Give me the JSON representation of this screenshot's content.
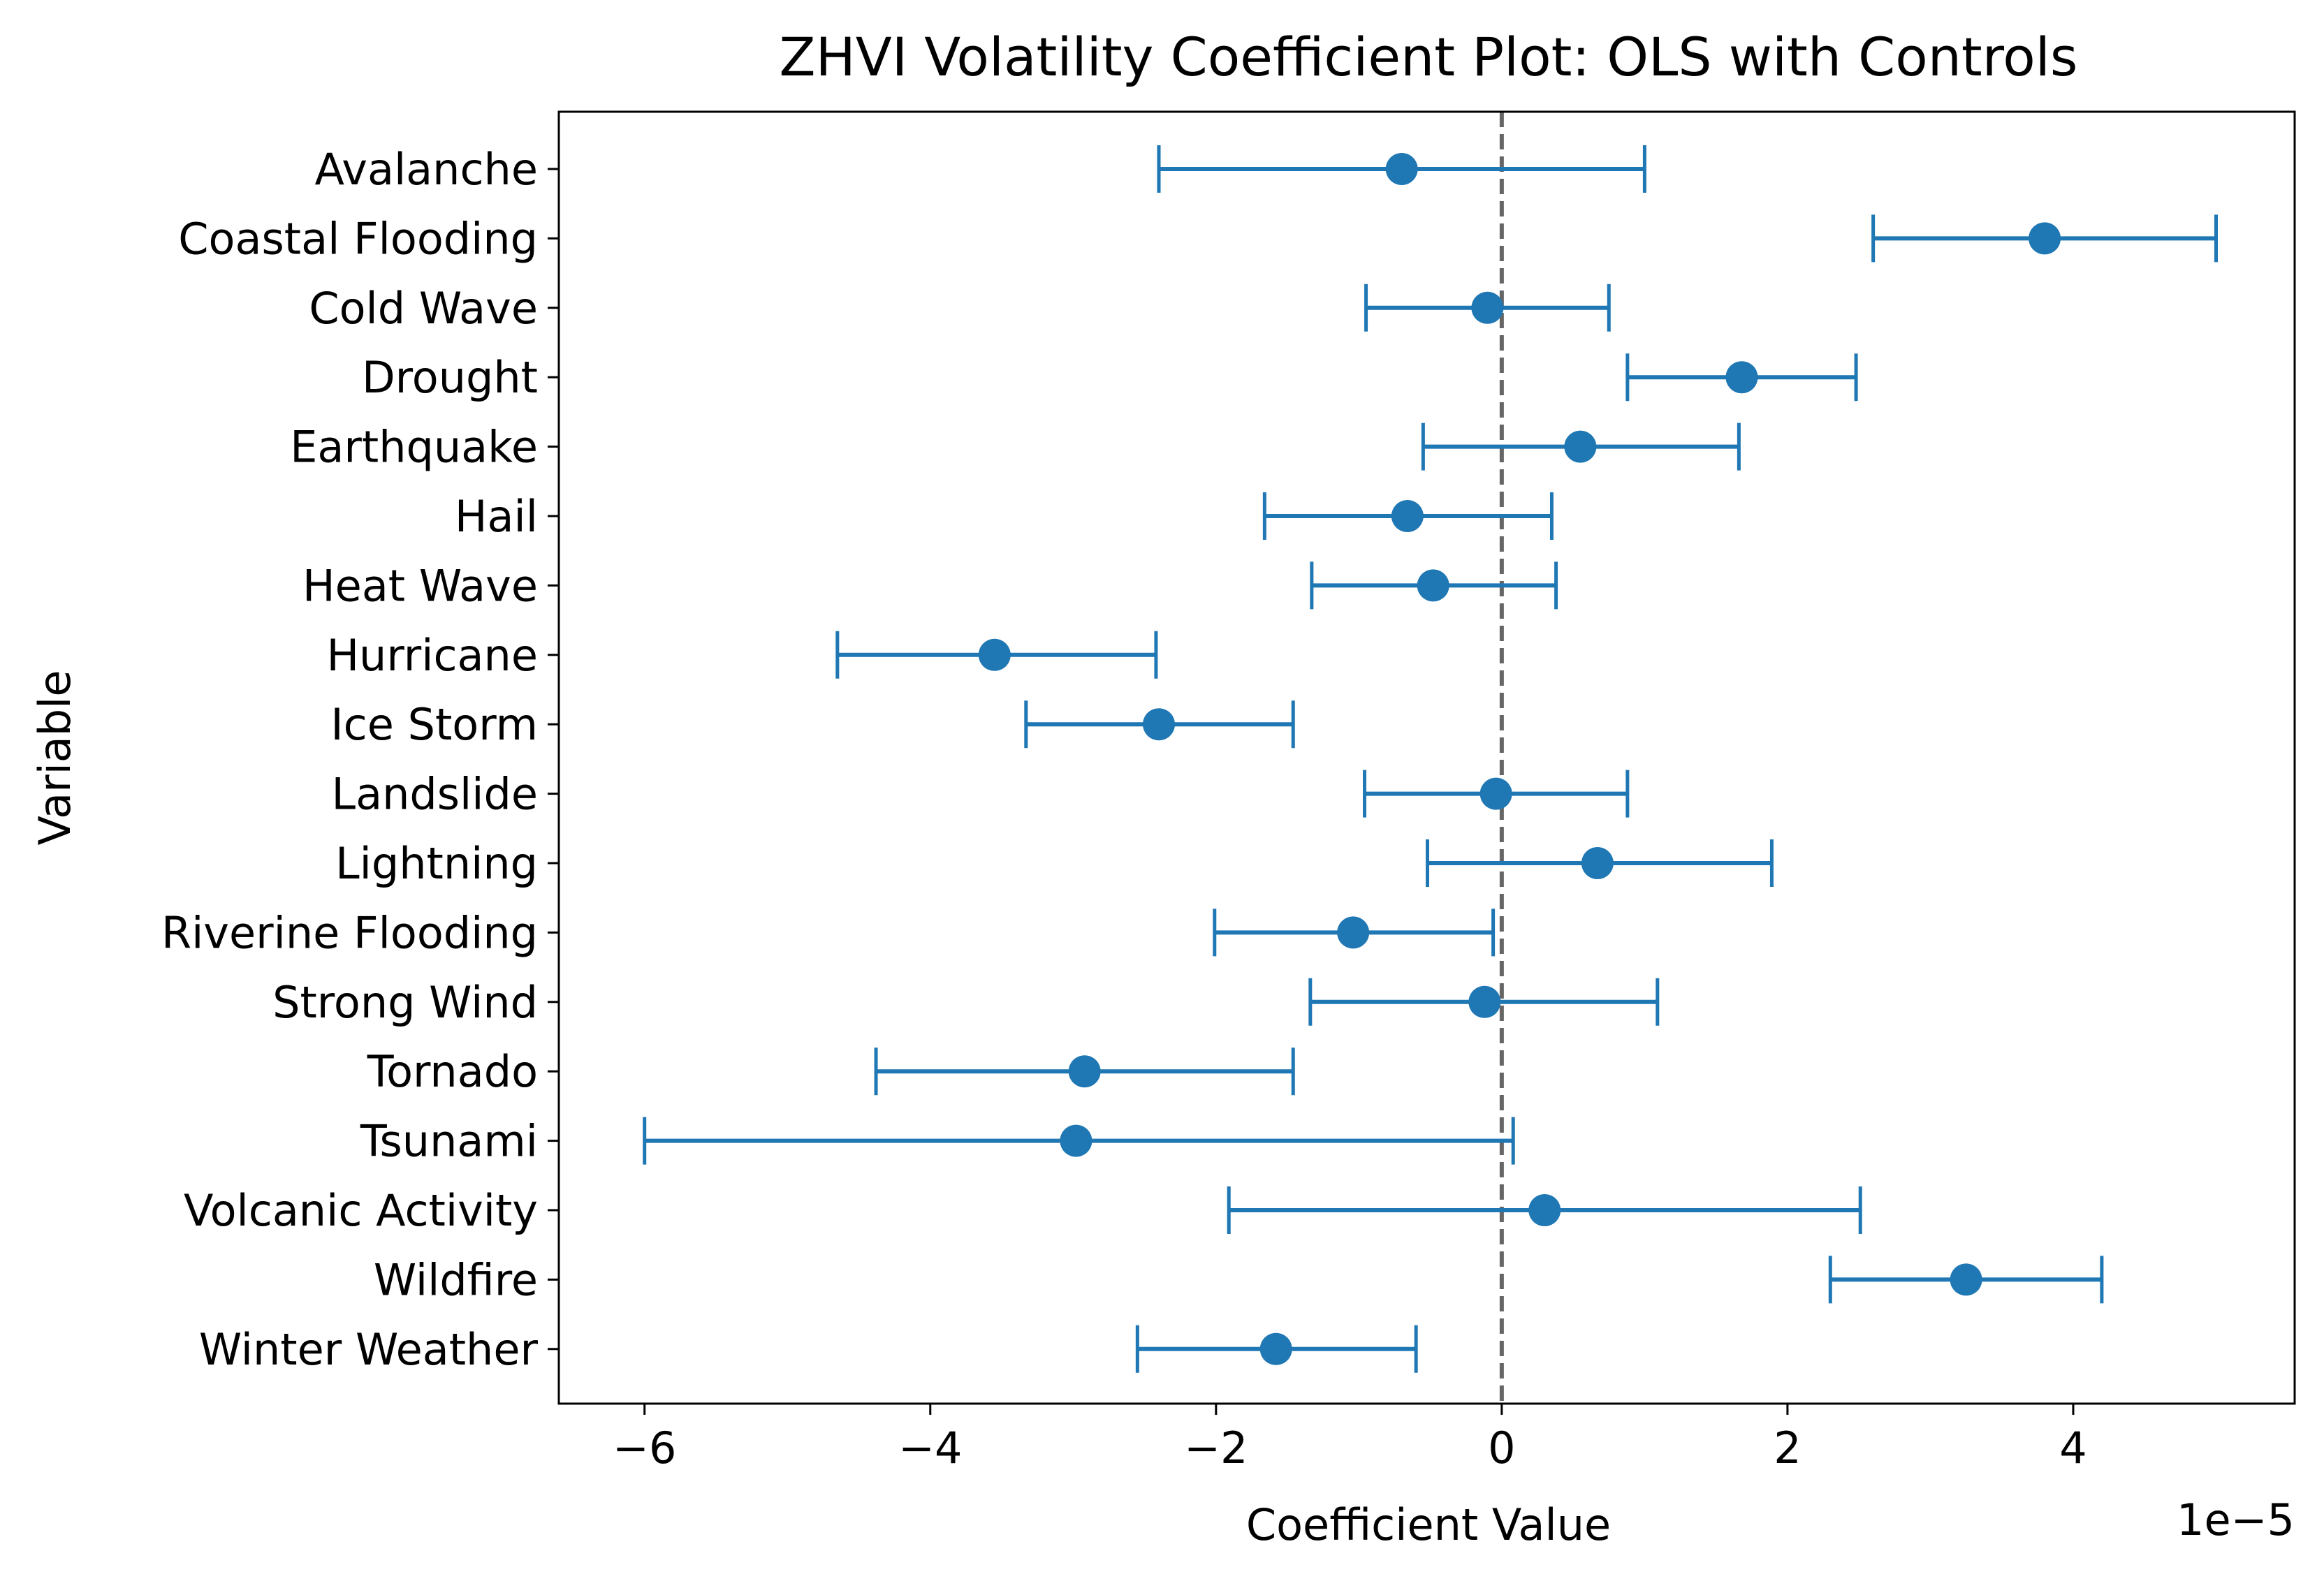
{
  "chart_data": {
    "type": "errorbar",
    "title": "ZHVI Volatility Coefficient Plot: OLS with Controls",
    "xlabel": "Coefficient Value",
    "ylabel": "Variable",
    "x_offset_label": "1e−5",
    "x_scale_factor": 1e-05,
    "xlim": [
      -6.6,
      5.55
    ],
    "xticks": [
      -6,
      -4,
      -2,
      0,
      2,
      4
    ],
    "xtick_labels": [
      "−6",
      "−4",
      "−2",
      "0",
      "2",
      "4"
    ],
    "reference_line": {
      "x": 0,
      "style": "dashed",
      "color": "#666666"
    },
    "series_color": "#1f77b4",
    "grid": false,
    "categories": [
      "Avalanche",
      "Coastal Flooding",
      "Cold Wave",
      "Drought",
      "Earthquake",
      "Hail",
      "Heat Wave",
      "Hurricane",
      "Ice Storm",
      "Landslide",
      "Lightning",
      "Riverine Flooding",
      "Strong Wind",
      "Tornado",
      "Tsunami",
      "Volcanic Activity",
      "Wildfire",
      "Winter Weather"
    ],
    "estimates": [
      -0.7,
      3.8,
      -0.1,
      1.68,
      0.55,
      -0.66,
      -0.48,
      -3.55,
      -2.4,
      -0.04,
      0.67,
      -1.04,
      -0.12,
      -2.92,
      -2.98,
      0.3,
      3.25,
      -1.58
    ],
    "ci_lower": [
      -2.4,
      2.6,
      -0.95,
      0.88,
      -0.55,
      -1.66,
      -1.33,
      -4.65,
      -3.33,
      -0.96,
      -0.52,
      -2.01,
      -1.34,
      -4.38,
      -6.0,
      -1.91,
      2.3,
      -2.55
    ],
    "ci_upper": [
      1.0,
      5.0,
      0.75,
      2.48,
      1.66,
      0.35,
      0.38,
      -2.42,
      -1.46,
      0.88,
      1.89,
      -0.06,
      1.09,
      -1.46,
      0.08,
      2.51,
      4.2,
      -0.6
    ]
  }
}
